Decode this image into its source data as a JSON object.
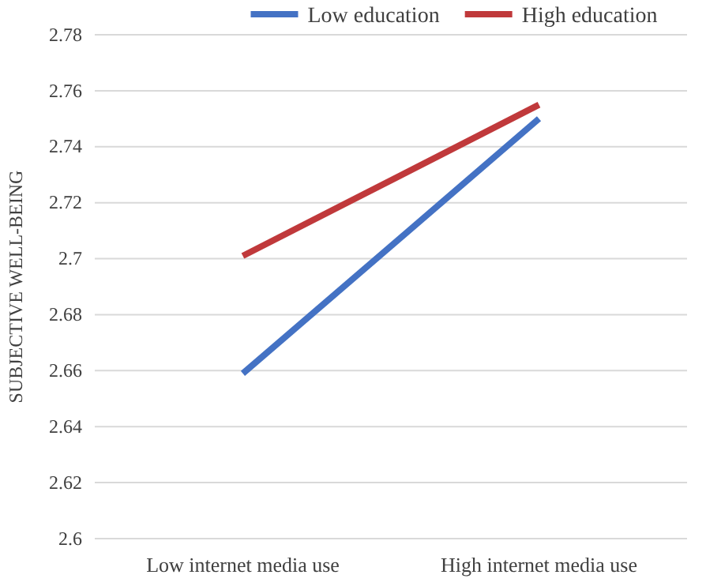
{
  "chart_data": {
    "type": "line",
    "ylabel": "SUBJECTIVE WELL-BEING",
    "categories": [
      "Low internet media use",
      "High internet media use"
    ],
    "series": [
      {
        "name": "Low education",
        "color": "#4472c4",
        "values": [
          2.659,
          2.75
        ]
      },
      {
        "name": "High education",
        "color": "#c0393b",
        "values": [
          2.701,
          2.755
        ]
      }
    ],
    "ylim": [
      2.6,
      2.78
    ],
    "yticks": [
      2.6,
      2.62,
      2.64,
      2.66,
      2.68,
      2.7,
      2.72,
      2.74,
      2.76,
      2.78
    ],
    "grid": "y",
    "legend": "top",
    "marker": "none",
    "line_style": "solid"
  }
}
